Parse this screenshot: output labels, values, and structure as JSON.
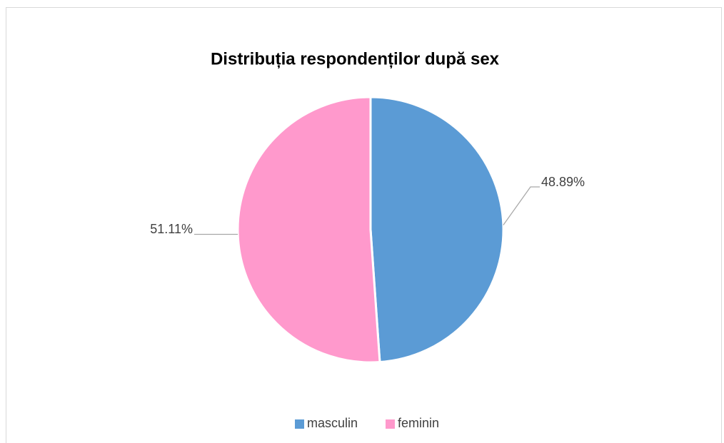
{
  "chart_data": {
    "type": "pie",
    "title": "Distribuția respondenților după sex",
    "categories": [
      "masculin",
      "feminin"
    ],
    "values": [
      48.89,
      51.11
    ],
    "value_labels": [
      "48.89%",
      "51.11%"
    ],
    "colors": [
      "#5b9bd5",
      "#ff99cc"
    ],
    "legend": "bottom"
  }
}
